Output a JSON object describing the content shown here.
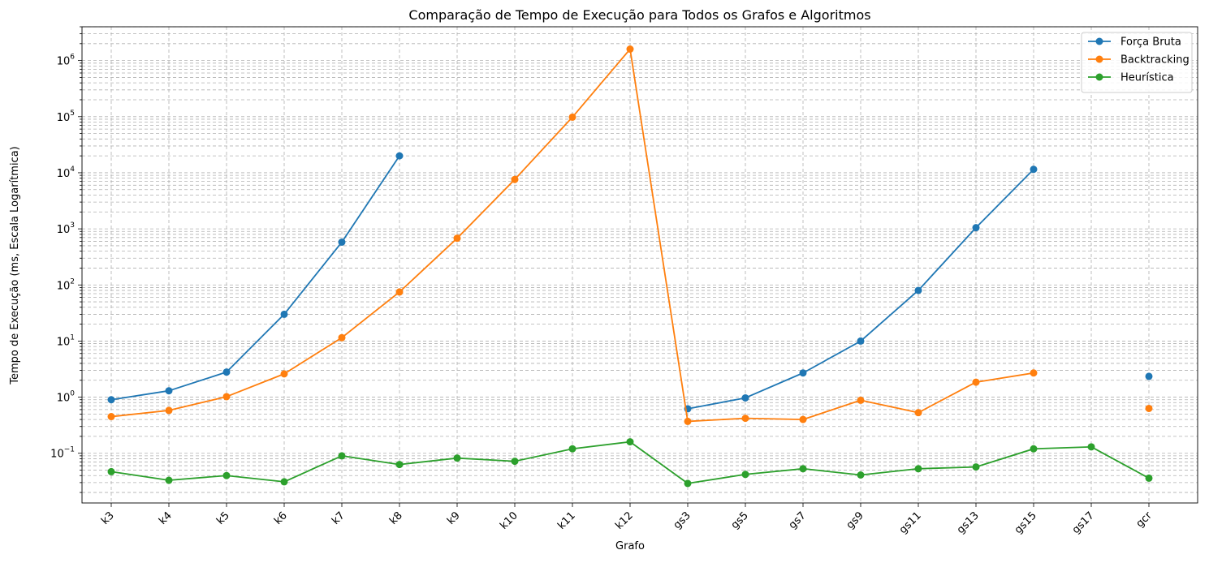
{
  "chart_data": {
    "type": "line",
    "title": "Comparação de Tempo de Execução para Todos os Grafos e Algoritmos",
    "xlabel": "Grafo",
    "ylabel": "Tempo de Execução (ms, Escala Logarítmica)",
    "y_scale": "log",
    "ylim": [
      0.013,
      4000000
    ],
    "y_ticks": [
      {
        "value": 0.1,
        "label": "10^-1"
      },
      {
        "value": 1,
        "label": "10^0"
      },
      {
        "value": 10,
        "label": "10^1"
      },
      {
        "value": 100,
        "label": "10^2"
      },
      {
        "value": 1000,
        "label": "10^3"
      },
      {
        "value": 10000,
        "label": "10^4"
      },
      {
        "value": 100000,
        "label": "10^5"
      },
      {
        "value": 1000000,
        "label": "10^6"
      }
    ],
    "grid": true,
    "legend_position": "top-right",
    "categories": [
      "k3",
      "k4",
      "k5",
      "k6",
      "k7",
      "k8",
      "k9",
      "k10",
      "k11",
      "k12",
      "gs3",
      "gs5",
      "gs7",
      "gs9",
      "gs11",
      "gs13",
      "gs15",
      "gs17",
      "gcr"
    ],
    "series": [
      {
        "name": "Força Bruta",
        "color": "#1f77b4",
        "values": [
          0.9,
          1.3,
          2.8,
          30,
          580,
          20000,
          null,
          null,
          null,
          null,
          0.62,
          0.97,
          2.7,
          10,
          80,
          1050,
          11500,
          null,
          2.35
        ]
      },
      {
        "name": "Backtracking",
        "color": "#ff7f0e",
        "values": [
          0.45,
          0.58,
          1.02,
          2.6,
          11.5,
          75,
          680,
          7600,
          98000,
          1600000,
          0.37,
          0.42,
          0.4,
          0.88,
          0.53,
          1.85,
          2.7,
          null,
          0.63
        ]
      },
      {
        "name": "Heurística",
        "color": "#2ca02c",
        "values": [
          0.047,
          0.033,
          0.04,
          0.031,
          0.09,
          0.063,
          0.082,
          0.072,
          0.12,
          0.16,
          0.029,
          0.042,
          0.053,
          0.041,
          0.053,
          0.057,
          0.12,
          0.13,
          0.036
        ]
      }
    ]
  }
}
